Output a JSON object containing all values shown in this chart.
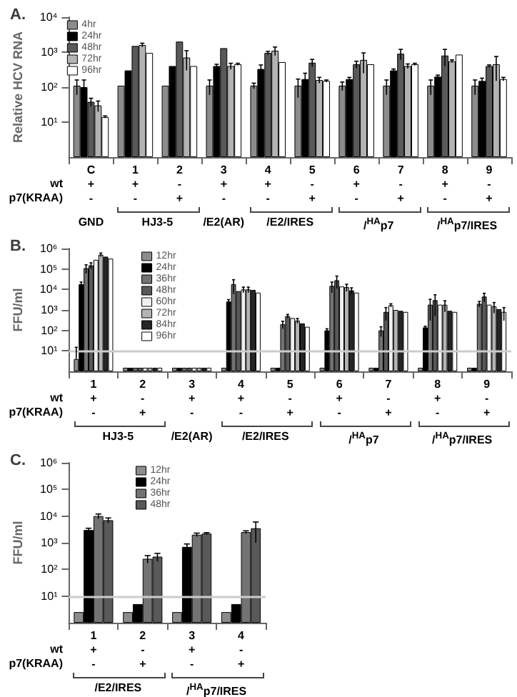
{
  "chart_data": [
    {
      "type": "bar",
      "title": "A.",
      "ylabel": "Relative HCV RNA",
      "log": true,
      "legend": "top left",
      "ylim": [
        1,
        10000
      ],
      "yticks": [
        {
          "value": 10,
          "label": "10¹"
        },
        {
          "value": 100,
          "label": "10²"
        },
        {
          "value": 1000,
          "label": "10³"
        },
        {
          "value": 10000,
          "label": "10⁴"
        }
      ],
      "categories": [
        "C\n+\n-",
        "1\n+\n-",
        "2\n-\n+",
        "3\n+\n-",
        "4\n+\n-",
        "5\n-\n+",
        "6\n+\n-",
        "7\n-\n+",
        "8\n+\n-",
        "9\n-\n+"
      ],
      "annotations": [
        "wt",
        "p7(KRAA)",
        "GND",
        "HJ3-5",
        "/E2(AR)",
        "/E2/IRES",
        "/$^{HA}$p7",
        "/$^{HA}$p7/IRES"
      ],
      "series": [
        {
          "name": "4hr",
          "color": "#8c8c8c",
          "values": [
            110,
            110,
            110,
            110,
            110,
            110,
            110,
            110,
            110,
            110
          ],
          "errors": [
            50,
            null,
            null,
            50,
            20,
            60,
            30,
            50,
            50,
            50
          ]
        },
        {
          "name": "24hr",
          "color": "#000000",
          "values": [
            100,
            300,
            400,
            400,
            330,
            170,
            170,
            300,
            200,
            150
          ],
          "errors": [
            60,
            null,
            null,
            50,
            100,
            80,
            20,
            30,
            20,
            30
          ]
        },
        {
          "name": "48hr",
          "color": "#595959",
          "values": [
            38,
            1500,
            2000,
            1300,
            950,
            500,
            450,
            900,
            800,
            400
          ],
          "errors": [
            10,
            null,
            null,
            null,
            100,
            120,
            100,
            300,
            400,
            30
          ]
        },
        {
          "name": "72hr",
          "color": "#b3b3b3",
          "values": [
            30,
            1600,
            700,
            400,
            1100,
            160,
            600,
            400,
            550,
            450
          ],
          "errors": [
            10,
            200,
            400,
            80,
            300,
            30,
            350,
            60,
            50,
            300
          ]
        },
        {
          "name": "96hr",
          "color": "#ffffff",
          "values": [
            14,
            950,
            400,
            450,
            520,
            150,
            450,
            450,
            850,
            170
          ],
          "errors": [
            1,
            null,
            null,
            30,
            null,
            10,
            null,
            30,
            null,
            20
          ]
        }
      ]
    },
    {
      "type": "bar",
      "title": "B.",
      "ylabel": "FFU/ml",
      "log": true,
      "legend": "top left",
      "ylim": [
        1,
        1000000
      ],
      "yticks": [
        {
          "value": 10,
          "label": "10¹"
        },
        {
          "value": 100,
          "label": "10²"
        },
        {
          "value": 1000,
          "label": "10³"
        },
        {
          "value": 10000,
          "label": "10⁴"
        },
        {
          "value": 100000,
          "label": "10⁵"
        },
        {
          "value": 1000000,
          "label": "10⁶"
        }
      ],
      "categories": [
        "1\n+\n-",
        "2\n-\n+",
        "3\n+\n-",
        "4\n+\n-",
        "5\n-\n+",
        "6\n+\n-",
        "7\n-\n+",
        "8\n+\n-",
        "9\n-\n+"
      ],
      "annotations": [
        "wt",
        "p7(KRAA)",
        "HJ3-5",
        "/E2(AR)",
        "/E2/IRES",
        "/$^{HA}$p7",
        "/$^{HA}$p7/IRES"
      ],
      "ref_lines": [
        {
          "axis": "y",
          "value": 10,
          "color": "#cccccc"
        }
      ],
      "series": [
        {
          "name": "12hr",
          "color": "#8c8c8c",
          "values": [
            4,
            1.5,
            1.5,
            1.5,
            1.5,
            1.5,
            1.5,
            1.5,
            1.5
          ],
          "errors": [
            [
              4,
              15
            ],
            null,
            null,
            null,
            null,
            null,
            null,
            null,
            null
          ]
        },
        {
          "name": "24hr",
          "color": "#000000",
          "values": [
            18000,
            1.5,
            1.5,
            2600,
            1.5,
            100,
            1.5,
            140,
            1.5
          ],
          "errors": [
            5000,
            null,
            null,
            600,
            null,
            20,
            null,
            20,
            null
          ]
        },
        {
          "name": "36hr",
          "color": "#737373",
          "values": [
            110000,
            1.5,
            1.5,
            18000,
            200,
            15000,
            100,
            1800,
            2000
          ],
          "errors": [
            50000,
            null,
            null,
            12000,
            80,
            8000,
            50,
            1500,
            600
          ]
        },
        {
          "name": "48hr",
          "color": "#595959",
          "values": [
            150000,
            1.5,
            1.5,
            8300,
            500,
            28000,
            800,
            3000,
            4500
          ],
          "errors": [
            50000,
            null,
            null,
            null,
            100,
            17000,
            500,
            2500,
            2000
          ]
        },
        {
          "name": "60hr",
          "color": "#f0f0f0",
          "values": [
            280000,
            1.5,
            1.5,
            10000,
            400,
            14000,
            1700,
            1800,
            1800
          ],
          "errors": [
            null,
            null,
            null,
            3000,
            null,
            null,
            300,
            null,
            null
          ]
        },
        {
          "name": "72hr",
          "color": "#b3b3b3",
          "values": [
            500000,
            1.5,
            1.5,
            10000,
            300,
            13000,
            1000,
            1800,
            1500
          ],
          "errors": [
            100000,
            null,
            null,
            3000,
            80,
            5000,
            null,
            1000,
            800
          ]
        },
        {
          "name": "84hr",
          "color": "#262626",
          "values": [
            400000,
            1.5,
            1.5,
            9500,
            220,
            9000,
            900,
            900,
            1100
          ],
          "errors": [
            null,
            null,
            null,
            null,
            null,
            3000,
            null,
            null,
            null
          ]
        },
        {
          "name": "96hr",
          "color": "#ffffff",
          "values": [
            320000,
            1.5,
            1.5,
            7000,
            150,
            7000,
            800,
            800,
            800
          ],
          "errors": [
            null,
            null,
            null,
            null,
            null,
            null,
            null,
            null,
            500
          ]
        }
      ]
    },
    {
      "type": "bar",
      "title": "C.",
      "ylabel": "FFU/ml",
      "log": true,
      "legend": "top left",
      "ylim": [
        1,
        1000000
      ],
      "yticks": [
        {
          "value": 10,
          "label": "10¹"
        },
        {
          "value": 100,
          "label": "10²"
        },
        {
          "value": 1000,
          "label": "10³"
        },
        {
          "value": 10000,
          "label": "10⁴"
        },
        {
          "value": 100000,
          "label": "10⁵"
        },
        {
          "value": 1000000,
          "label": "10⁶"
        }
      ],
      "categories": [
        "1\n+\n-",
        "2\n-\n+",
        "3\n+\n-",
        "4\n-\n+"
      ],
      "annotations": [
        "wt",
        "p7(KRAA)",
        "/E2/IRES",
        "/$^{HA}$p7/IRES"
      ],
      "ref_lines": [
        {
          "axis": "y",
          "value": 10,
          "color": "#cccccc"
        }
      ],
      "series": [
        {
          "name": "12hr",
          "color": "#8c8c8c",
          "values": [
            2.5,
            2.5,
            2.5,
            2.5
          ]
        },
        {
          "name": "24hr",
          "color": "#000000",
          "values": [
            3000,
            5,
            700,
            5
          ],
          "errors": [
            500,
            null,
            200,
            null
          ]
        },
        {
          "name": "36hr",
          "color": "#737373",
          "values": [
            10000,
            250,
            2000,
            2500
          ],
          "errors": [
            2000,
            80,
            300,
            300
          ]
        },
        {
          "name": "48hr",
          "color": "#595959",
          "values": [
            7000,
            300,
            2200,
            3500
          ],
          "errors": [
            1500,
            100,
            200,
            2500
          ]
        }
      ]
    }
  ]
}
